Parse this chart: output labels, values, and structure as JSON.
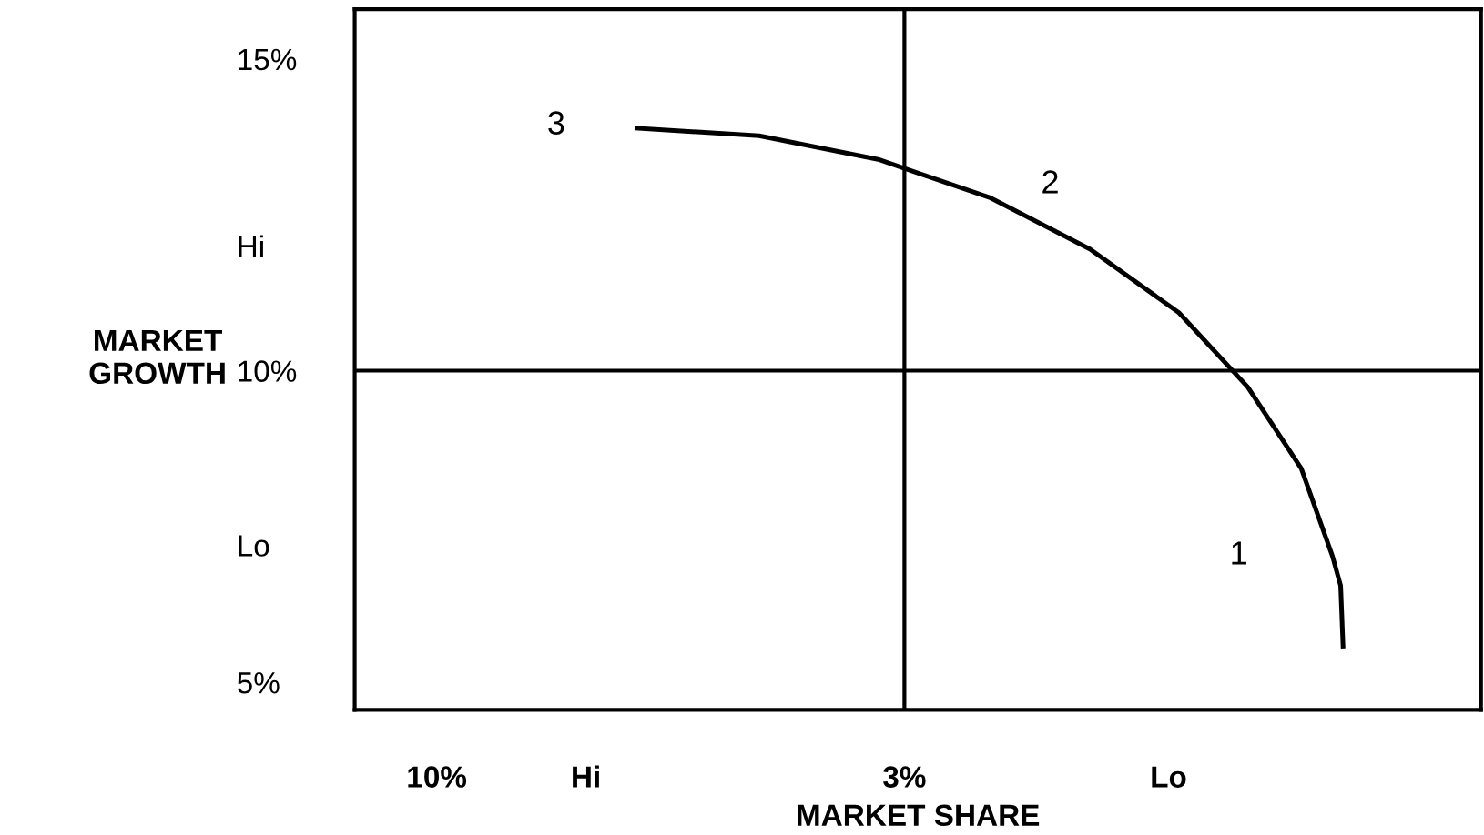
{
  "chart_data": {
    "type": "line",
    "xlabel": "MARKET SHARE",
    "ylabel": "MARKET\nGROWTH",
    "log": "x",
    "xlim": [
      12.35,
      0.68
    ],
    "ylim": [
      4.56,
      15.8
    ],
    "xticks": [
      {
        "value": 10,
        "label": "10%"
      },
      {
        "value": 6.81,
        "label": "Hi"
      },
      {
        "value": 3,
        "label": "3%"
      },
      {
        "value": 1.52,
        "label": "Lo"
      }
    ],
    "yticks": [
      {
        "value": 5,
        "label": "5%"
      },
      {
        "value": 7.2,
        "label": "Lo"
      },
      {
        "value": 10,
        "label": "10%"
      },
      {
        "value": 12,
        "label": "Hi"
      },
      {
        "value": 15,
        "label": "15%"
      }
    ],
    "series": [
      {
        "color": "#000000",
        "x": [
          5.97,
          4.36,
          3.21,
          2.41,
          1.86,
          1.48,
          1.24,
          1.08,
          0.997,
          0.976,
          0.97
        ],
        "values": [
          13.89,
          13.77,
          13.39,
          12.78,
          11.95,
          10.93,
          9.74,
          8.43,
          7.03,
          6.55,
          5.58
        ]
      }
    ],
    "ref_lines": [
      {
        "axis": "x",
        "value": 3,
        "color": "#000000"
      },
      {
        "axis": "y",
        "value": 10,
        "color": "#000000"
      }
    ],
    "annotations": [
      {
        "text": "3",
        "x": 5.97,
        "y": 13.89
      },
      {
        "text": "2",
        "x": 2.41,
        "y": 12.78
      },
      {
        "text": "1",
        "x": 0.997,
        "y": 7.03
      }
    ],
    "grid": false,
    "marker": "none",
    "line_style": "solid"
  }
}
